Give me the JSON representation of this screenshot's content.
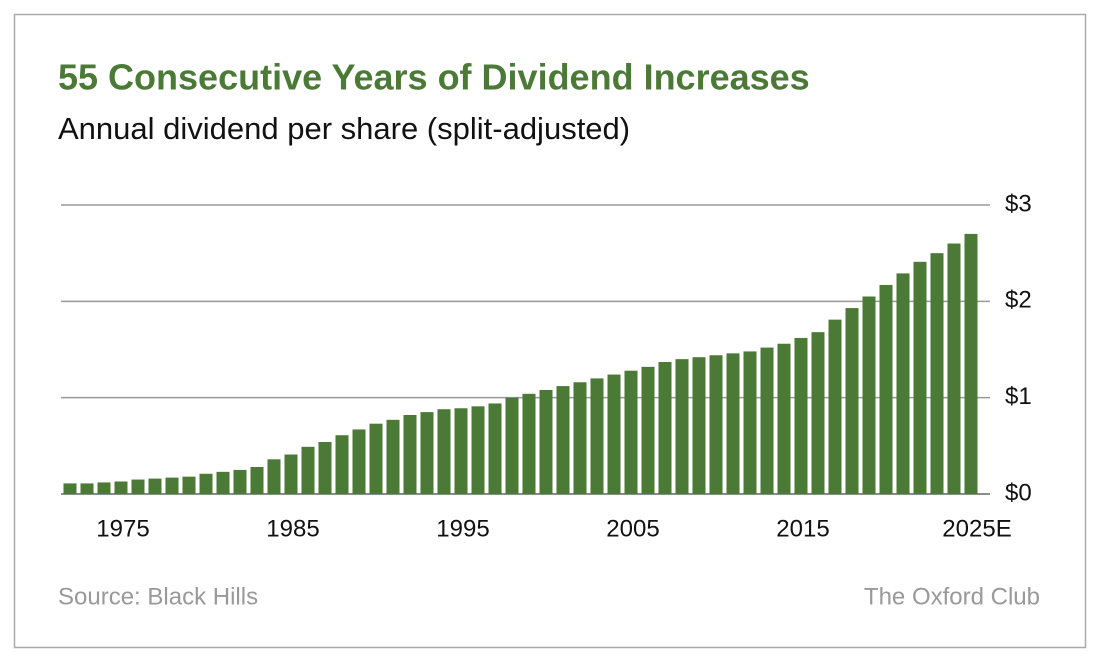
{
  "chart_data": {
    "type": "bar",
    "title": "55 Consecutive Years of Dividend Increases",
    "subtitle": "Annual dividend per share (split-adjusted)",
    "source": "Source: Black Hills",
    "credit": "The Oxford Club",
    "color": "#4a7a35",
    "grid": true,
    "categories": [
      null,
      null,
      null,
      "1975",
      null,
      null,
      null,
      null,
      null,
      null,
      null,
      null,
      null,
      "1985",
      null,
      null,
      null,
      null,
      null,
      null,
      null,
      null,
      null,
      "1995",
      null,
      null,
      null,
      null,
      null,
      null,
      null,
      null,
      null,
      "2005",
      null,
      null,
      null,
      null,
      null,
      null,
      null,
      null,
      null,
      "2015",
      null,
      null,
      null,
      null,
      null,
      null,
      null,
      null,
      null,
      "2025E"
    ],
    "values": [
      0.11,
      0.11,
      0.12,
      0.13,
      0.15,
      0.16,
      0.17,
      0.18,
      0.21,
      0.23,
      0.25,
      0.28,
      0.36,
      0.41,
      0.49,
      0.54,
      0.61,
      0.67,
      0.73,
      0.77,
      0.82,
      0.85,
      0.88,
      0.89,
      0.91,
      0.94,
      1.0,
      1.04,
      1.08,
      1.12,
      1.16,
      1.2,
      1.24,
      1.28,
      1.32,
      1.37,
      1.4,
      1.42,
      1.44,
      1.46,
      1.48,
      1.52,
      1.56,
      1.62,
      1.68,
      1.81,
      1.93,
      2.05,
      2.17,
      2.29,
      2.41,
      2.5,
      2.6,
      2.7
    ],
    "ylim": [
      0,
      3
    ],
    "yticks": [
      {
        "value": 0,
        "label": "$0"
      },
      {
        "value": 1,
        "label": "$1"
      },
      {
        "value": 2,
        "label": "$2"
      },
      {
        "value": 3,
        "label": "$3"
      }
    ]
  }
}
